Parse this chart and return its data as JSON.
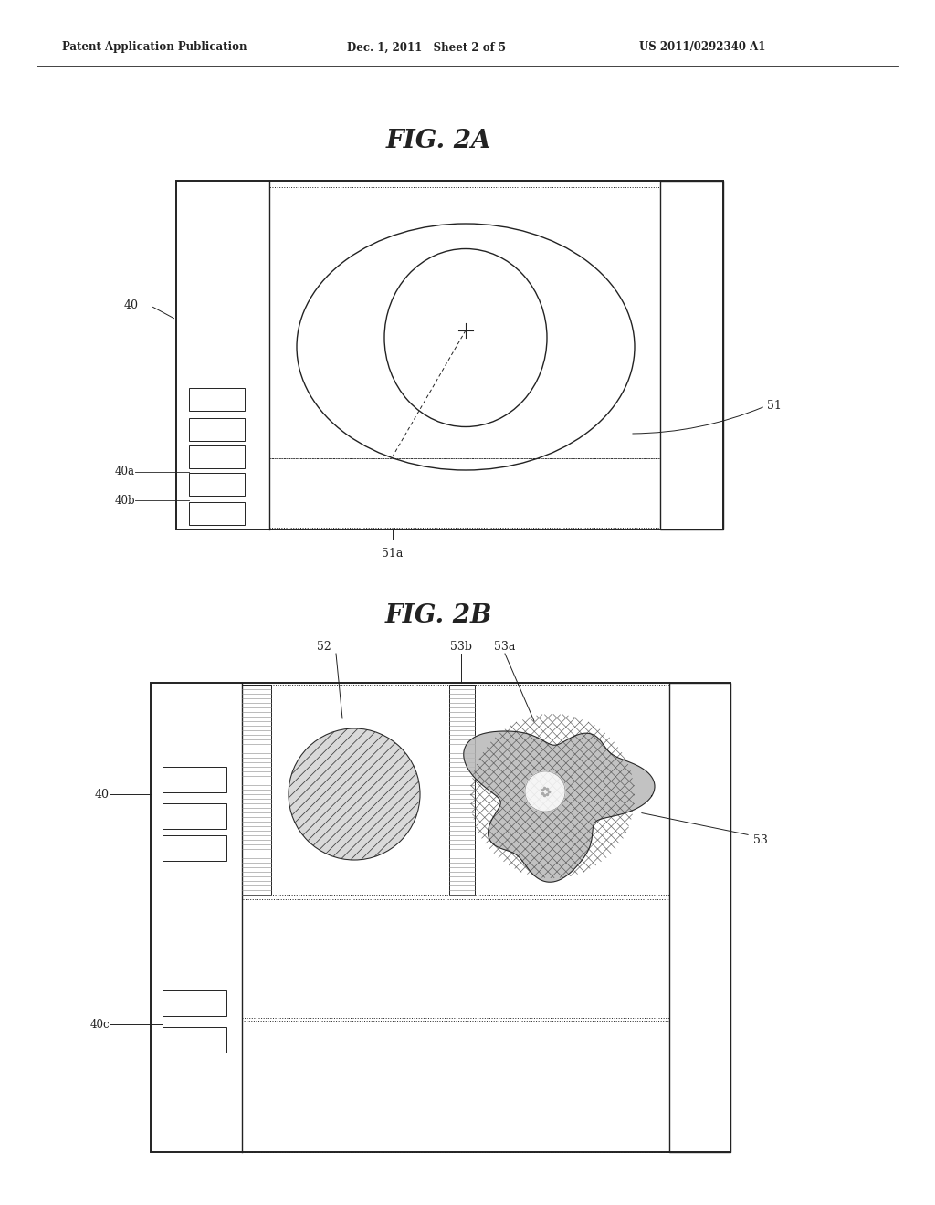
{
  "bg_color": "#ffffff",
  "header_left": "Patent Application Publication",
  "header_mid": "Dec. 1, 2011   Sheet 2 of 5",
  "header_right": "US 2011/0292340 A1",
  "fig2a_title": "FIG. 2A",
  "fig2b_title": "FIG. 2B",
  "line_color": "#222222",
  "label_color": "#222222"
}
